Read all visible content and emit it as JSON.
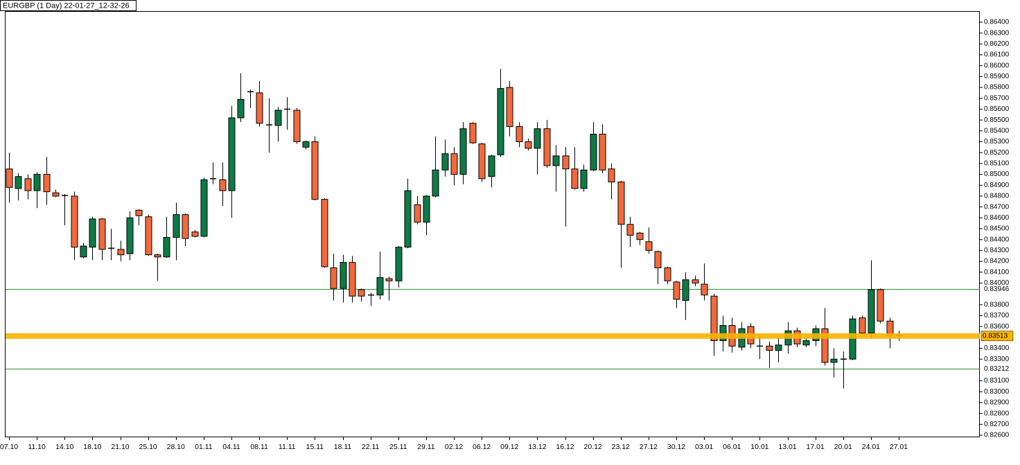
{
  "chart_data": {
    "type": "candlestick",
    "title": "EURGBP (1 Day) 22-01-27_12-32-26",
    "up_color": "#0e7a46",
    "down_color": "#f2693c",
    "doji_color": "#000000",
    "categories": [
      "07.10",
      null,
      null,
      "11.10",
      null,
      null,
      "14.10",
      null,
      null,
      "18.10",
      null,
      null,
      "21.10",
      null,
      null,
      "25.10",
      null,
      null,
      "28.10",
      null,
      null,
      "01.11",
      null,
      null,
      "04.11",
      null,
      null,
      "08.11",
      null,
      null,
      "11.11",
      null,
      null,
      "15.11",
      null,
      null,
      "18.11",
      null,
      null,
      "22.11",
      null,
      null,
      "25.11",
      null,
      null,
      "29.11",
      null,
      null,
      "02.12",
      null,
      null,
      "06.12",
      null,
      null,
      "09.12",
      null,
      null,
      "13.12",
      null,
      null,
      "16.12",
      null,
      null,
      "20.12",
      null,
      null,
      "23.12",
      null,
      null,
      "27.12",
      null,
      null,
      "30.12",
      null,
      null,
      "03.01",
      null,
      null,
      "06.01",
      null,
      null,
      "10.01",
      null,
      null,
      "13.01",
      null,
      null,
      "17.01",
      null,
      null,
      "20.01",
      null,
      null,
      "24.01",
      null,
      null,
      "27.01"
    ],
    "open": [
      0.8505,
      0.8487,
      0.8496,
      0.8485,
      0.85,
      0.8483,
      0.8481,
      0.848,
      0.8424,
      0.8433,
      0.8459,
      0.8432,
      0.8431,
      0.8427,
      0.8467,
      0.8461,
      0.8426,
      0.8424,
      0.8442,
      0.8463,
      0.8447,
      0.8443,
      0.8496,
      0.8495,
      0.8485,
      0.8552,
      0.8576,
      0.8575,
      0.8546,
      0.8545,
      0.856,
      0.8559,
      0.8525,
      0.853,
      0.8477,
      0.8414,
      0.8395,
      0.8419,
      0.8394,
      0.8389,
      0.8389,
      0.8404,
      0.8402,
      0.8433,
      0.8472,
      0.8456,
      0.848,
      0.8504,
      0.8519,
      0.85,
      0.8547,
      0.8528,
      0.8498,
      0.8518,
      0.858,
      0.8544,
      0.853,
      0.8524,
      0.8542,
      0.8508,
      0.8517,
      0.8505,
      0.8487,
      0.8504,
      0.8537,
      0.8505,
      0.8493,
      0.8454,
      0.8446,
      0.8438,
      0.8429,
      0.8414,
      0.8401,
      0.8384,
      0.8403,
      0.8399,
      0.8388,
      0.8347,
      0.8361,
      0.8341,
      0.836,
      0.8342,
      0.8342,
      0.8338,
      0.8343,
      0.8356,
      0.8343,
      0.8347,
      0.8358,
      0.8327,
      0.833,
      0.833,
      0.8368,
      0.8354,
      0.8394,
      0.8365,
      0.8352
    ],
    "high": [
      0.852,
      0.8501,
      0.85,
      0.8502,
      0.8516,
      0.8486,
      0.8482,
      0.8484,
      0.8437,
      0.8461,
      0.846,
      0.845,
      0.8439,
      0.8466,
      0.8468,
      0.8463,
      0.8427,
      0.8461,
      0.8474,
      0.8464,
      0.8449,
      0.8497,
      0.8511,
      0.8511,
      0.8563,
      0.8593,
      0.8578,
      0.8586,
      0.857,
      0.8562,
      0.8571,
      0.8561,
      0.8531,
      0.8535,
      0.8478,
      0.8427,
      0.8426,
      0.8425,
      0.8395,
      0.8391,
      0.8429,
      0.8406,
      0.8434,
      0.8496,
      0.848,
      0.8481,
      0.8535,
      0.8532,
      0.8525,
      0.8548,
      0.8548,
      0.8529,
      0.8518,
      0.8597,
      0.8586,
      0.8548,
      0.8533,
      0.8548,
      0.855,
      0.8527,
      0.8525,
      0.8525,
      0.8509,
      0.8548,
      0.8546,
      0.851,
      0.8494,
      0.8461,
      0.8447,
      0.8451,
      0.843,
      0.8415,
      0.8402,
      0.841,
      0.8407,
      0.8418,
      0.839,
      0.837,
      0.8368,
      0.8364,
      0.8363,
      0.8352,
      0.8346,
      0.835,
      0.8364,
      0.8359,
      0.8349,
      0.8361,
      0.8377,
      0.834,
      0.8337,
      0.837,
      0.837,
      0.8421,
      0.8395,
      0.8368,
      0.8356
    ],
    "low": [
      0.8474,
      0.8476,
      0.8477,
      0.8469,
      0.8472,
      0.8479,
      0.8453,
      0.8421,
      0.8423,
      0.8421,
      0.8421,
      0.8421,
      0.842,
      0.8421,
      0.8453,
      0.8425,
      0.8402,
      0.8423,
      0.8421,
      0.8434,
      0.8442,
      0.8442,
      0.8491,
      0.8471,
      0.846,
      0.8548,
      0.8561,
      0.8544,
      0.852,
      0.853,
      0.8541,
      0.8528,
      0.8523,
      0.8476,
      0.8414,
      0.8384,
      0.8382,
      0.8382,
      0.8383,
      0.8379,
      0.8385,
      0.8384,
      0.8396,
      0.8432,
      0.8454,
      0.8444,
      0.8479,
      0.8498,
      0.849,
      0.8491,
      0.8528,
      0.8493,
      0.8488,
      0.8516,
      0.8535,
      0.8525,
      0.8522,
      0.85,
      0.8506,
      0.8484,
      0.8452,
      0.8486,
      0.8484,
      0.8503,
      0.8501,
      0.8477,
      0.8414,
      0.8433,
      0.8435,
      0.8427,
      0.8399,
      0.8399,
      0.8377,
      0.8366,
      0.8397,
      0.8384,
      0.8333,
      0.8337,
      0.8336,
      0.8338,
      0.834,
      0.833,
      0.8322,
      0.8327,
      0.8335,
      0.8341,
      0.8341,
      0.8342,
      0.8324,
      0.8313,
      0.8303,
      0.8329,
      0.8352,
      0.8349,
      0.8363,
      0.834,
      0.8347
    ],
    "close": [
      0.8488,
      0.8498,
      0.8485,
      0.85,
      0.8484,
      0.848,
      0.848,
      0.8433,
      0.8434,
      0.8459,
      0.8431,
      0.8432,
      0.8426,
      0.846,
      0.8462,
      0.8426,
      0.8424,
      0.8442,
      0.8463,
      0.8441,
      0.8443,
      0.8495,
      0.8496,
      0.8485,
      0.8552,
      0.8569,
      0.8576,
      0.8547,
      0.8545,
      0.8559,
      0.856,
      0.853,
      0.853,
      0.8477,
      0.8415,
      0.8395,
      0.8419,
      0.8388,
      0.8388,
      0.8389,
      0.8405,
      0.8402,
      0.8433,
      0.8485,
      0.8456,
      0.848,
      0.8504,
      0.8519,
      0.85,
      0.8542,
      0.8529,
      0.8496,
      0.8517,
      0.8579,
      0.8544,
      0.853,
      0.8524,
      0.8542,
      0.8508,
      0.8517,
      0.8505,
      0.8487,
      0.8504,
      0.8537,
      0.8504,
      0.8493,
      0.8454,
      0.8444,
      0.844,
      0.843,
      0.8414,
      0.8402,
      0.8385,
      0.8403,
      0.84,
      0.8389,
      0.8347,
      0.8361,
      0.8342,
      0.8358,
      0.8344,
      0.8342,
      0.8338,
      0.8343,
      0.8356,
      0.8344,
      0.8347,
      0.8358,
      0.8327,
      0.833,
      0.833,
      0.8367,
      0.8354,
      0.8394,
      0.8365,
      0.8352,
      0.8351
    ],
    "ylim": [
      0.82581,
      0.86502
    ],
    "yticks": [
      {
        "value": 0.864,
        "label": "0.86400"
      },
      {
        "value": 0.863,
        "label": "0.86300"
      },
      {
        "value": 0.862,
        "label": "0.86200"
      },
      {
        "value": 0.861,
        "label": "0.86100"
      },
      {
        "value": 0.86,
        "label": "0.86000"
      },
      {
        "value": 0.859,
        "label": "0.85900"
      },
      {
        "value": 0.858,
        "label": "0.85800"
      },
      {
        "value": 0.857,
        "label": "0.85700"
      },
      {
        "value": 0.856,
        "label": "0.85600"
      },
      {
        "value": 0.855,
        "label": "0.85500"
      },
      {
        "value": 0.854,
        "label": "0.85400"
      },
      {
        "value": 0.853,
        "label": "0.85300"
      },
      {
        "value": 0.852,
        "label": "0.85200"
      },
      {
        "value": 0.851,
        "label": "0.85100"
      },
      {
        "value": 0.85,
        "label": "0.85000"
      },
      {
        "value": 0.849,
        "label": "0.84900"
      },
      {
        "value": 0.848,
        "label": "0.84800"
      },
      {
        "value": 0.847,
        "label": "0.84700"
      },
      {
        "value": 0.846,
        "label": "0.84600"
      },
      {
        "value": 0.845,
        "label": "0.84500"
      },
      {
        "value": 0.844,
        "label": "0.84400"
      },
      {
        "value": 0.843,
        "label": "0.84300"
      },
      {
        "value": 0.842,
        "label": "0.84200"
      },
      {
        "value": 0.841,
        "label": "0.84100"
      },
      {
        "value": 0.84,
        "label": "0.84000"
      },
      {
        "value": 0.838,
        "label": "0.83800"
      },
      {
        "value": 0.837,
        "label": "0.83700"
      },
      {
        "value": 0.836,
        "label": "0.83600"
      },
      {
        "value": 0.834,
        "label": "0.83400"
      },
      {
        "value": 0.833,
        "label": "0.83300"
      },
      {
        "value": 0.831,
        "label": "0.83100"
      },
      {
        "value": 0.83,
        "label": "0.83000"
      },
      {
        "value": 0.829,
        "label": "0.82900"
      },
      {
        "value": 0.828,
        "label": "0.82800"
      },
      {
        "value": 0.827,
        "label": "0.82700"
      },
      {
        "value": 0.826,
        "label": "0.82600"
      }
    ],
    "levels": [
      {
        "value": 0.83946,
        "color": "#2f8f2f"
      },
      {
        "value": 0.83212,
        "color": "#2f8f2f"
      }
    ],
    "current_price": {
      "value": 0.83513,
      "color": "#f7b500"
    }
  }
}
